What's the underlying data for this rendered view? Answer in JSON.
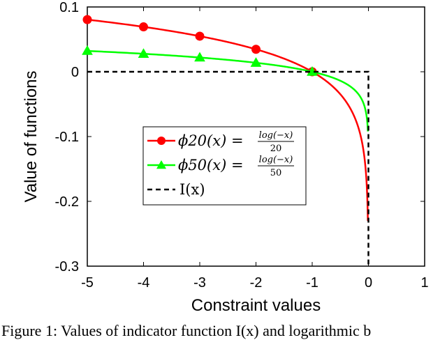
{
  "chart_data": {
    "type": "line",
    "xlabel": "Constraint values",
    "ylabel": "Value of functions",
    "xlim": [
      -5,
      1
    ],
    "ylim": [
      -0.3,
      0.1
    ],
    "xticks": [
      "-5",
      "-4",
      "-3",
      "-2",
      "-1",
      "0",
      "1"
    ],
    "yticks": [
      "0.1",
      "0",
      "-0.1",
      "-0.2",
      "-0.3"
    ],
    "grid": false,
    "legend_position": "center-left",
    "series": [
      {
        "name": "φ20(x) = log(−x) / 20",
        "name_main": "ϕ20(x) =",
        "name_num": "log(−x)",
        "name_den": "20",
        "color": "#ff0000",
        "marker": "circle",
        "t": 20,
        "x_start": -5,
        "x_end": -0.01,
        "marker_x": [
          -5,
          -4,
          -3,
          -2,
          -1
        ],
        "marker_y": [
          0.0805,
          0.0693,
          0.0549,
          0.0347,
          0.0
        ]
      },
      {
        "name": "φ50(x) = log(−x) / 50",
        "name_main": "ϕ50(x) =",
        "name_num": "log(−x)",
        "name_den": "50",
        "color": "#00ff00",
        "marker": "triangle",
        "t": 50,
        "x_start": -5,
        "x_end": -0.01,
        "marker_x": [
          -5,
          -4,
          -3,
          -2,
          -1
        ],
        "marker_y": [
          0.0322,
          0.0277,
          0.022,
          0.0139,
          0.0
        ]
      },
      {
        "name": "I(x)",
        "color": "#000000",
        "style": "dashed",
        "x": [
          -5,
          0,
          0
        ],
        "y": [
          0,
          0,
          -0.3
        ]
      }
    ]
  },
  "caption": "Figure 1: Values of indicator function I(x) and logarithmic b"
}
